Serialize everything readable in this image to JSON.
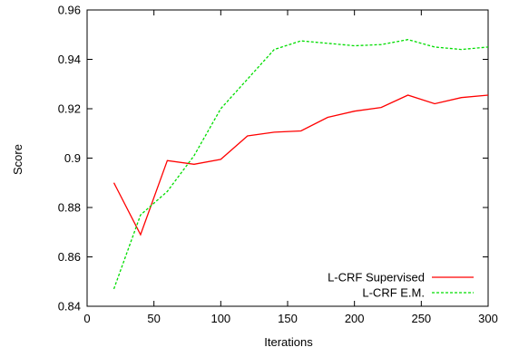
{
  "chart_data": {
    "type": "line",
    "title": "",
    "xlabel": "Iterations",
    "ylabel": "Score",
    "xlim": [
      0,
      300
    ],
    "ylim": [
      0.84,
      0.96
    ],
    "grid": false,
    "legend_position": "bottom-right",
    "x_ticks": [
      0,
      50,
      100,
      150,
      200,
      250,
      300
    ],
    "y_ticks": [
      0.84,
      0.86,
      0.88,
      0.9,
      0.92,
      0.94,
      0.96
    ],
    "x_tick_labels": [
      "0",
      "50",
      "100",
      "150",
      "200",
      "250",
      "300"
    ],
    "y_tick_labels": [
      "0.84",
      "0.86",
      "0.88",
      "0.9",
      "0.92",
      "0.94",
      "0.96"
    ],
    "x": [
      20,
      40,
      60,
      80,
      100,
      120,
      140,
      160,
      180,
      200,
      220,
      240,
      260,
      280,
      300
    ],
    "series": [
      {
        "name": "L-CRF Supervised",
        "color": "#ff0000",
        "dash": "solid",
        "values": [
          0.89,
          0.869,
          0.899,
          0.8975,
          0.8995,
          0.909,
          0.9105,
          0.911,
          0.9165,
          0.919,
          0.9205,
          0.9255,
          0.922,
          0.9245,
          0.9255
        ]
      },
      {
        "name": "L-CRF E.M.",
        "color": "#00dd00",
        "dash": "dashed",
        "values": [
          0.847,
          0.877,
          0.8865,
          0.901,
          0.92,
          0.932,
          0.944,
          0.9475,
          0.9465,
          0.9455,
          0.946,
          0.948,
          0.945,
          0.944,
          0.945
        ]
      }
    ]
  }
}
